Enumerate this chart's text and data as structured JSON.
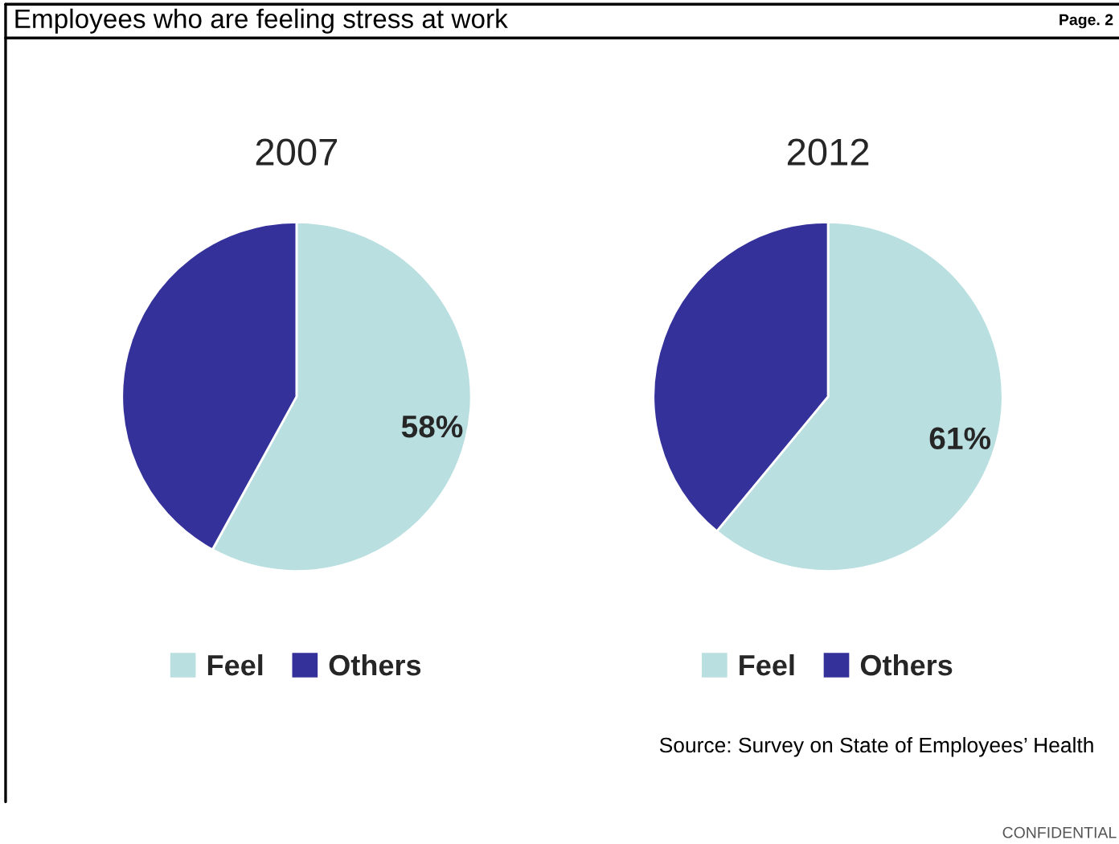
{
  "chart_data": [
    {
      "type": "pie",
      "title": "2007",
      "categories": [
        "Feel",
        "Others"
      ],
      "values": [
        58,
        42
      ],
      "colors": [
        "#b9dfe1",
        "#34329a"
      ],
      "value_labels": [
        "58%",
        null
      ],
      "legend": "bottom",
      "annotations": [
        "Employees who are feeling stress at work",
        "Page. 2"
      ]
    },
    {
      "type": "pie",
      "title": "2012",
      "categories": [
        "Feel",
        "Others"
      ],
      "values": [
        61,
        39
      ],
      "colors": [
        "#b9dfe1",
        "#34329a"
      ],
      "value_labels": [
        "61%",
        null
      ],
      "legend": "bottom",
      "annotations": [
        "Source: Survey on State of Employees’ Health",
        "CONFIDENTIAL"
      ]
    }
  ]
}
